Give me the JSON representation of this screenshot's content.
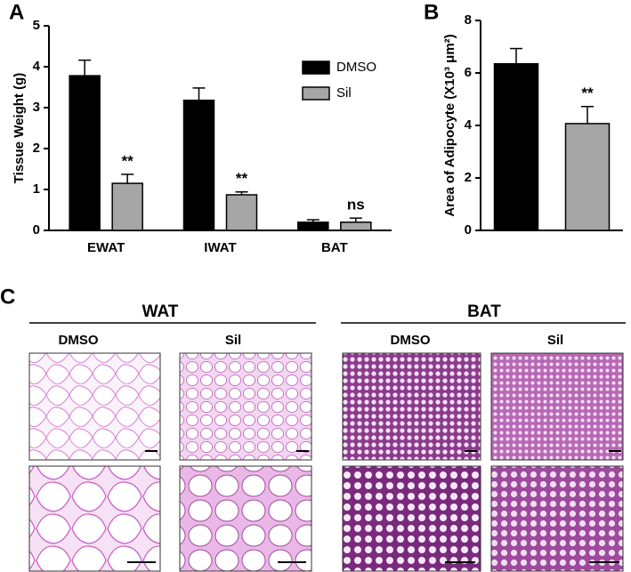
{
  "chart_data": [
    {
      "type": "bar",
      "panel_label": "A",
      "ylabel": "Tissue Weight (g)",
      "categories": [
        "EWAT",
        "IWAT",
        "BAT"
      ],
      "series": [
        {
          "name": "DMSO",
          "color": "#000000",
          "values": [
            3.78,
            3.18,
            0.2
          ],
          "errors": [
            0.38,
            0.3,
            0.06
          ]
        },
        {
          "name": "Sil",
          "color": "#a6a6a6",
          "values": [
            1.15,
            0.87,
            0.2
          ],
          "errors": [
            0.22,
            0.07,
            0.1
          ],
          "annotations": [
            "**",
            "**",
            "ns"
          ]
        }
      ],
      "ylim": [
        0,
        5
      ],
      "yticks": [
        0,
        1,
        2,
        3,
        4,
        5
      ],
      "legend": "top-right"
    },
    {
      "type": "bar",
      "panel_label": "B",
      "ylabel": "Area of Adipocyte (X10³ μm²)",
      "categories": [
        null,
        null
      ],
      "values": [
        6.35,
        4.07
      ],
      "errors": [
        0.58,
        0.65
      ],
      "colors": [
        "#000000",
        "#a6a6a6"
      ],
      "annotations": [
        null,
        "**"
      ],
      "ylim": [
        0,
        8
      ],
      "yticks": [
        0,
        2,
        4,
        6,
        8
      ]
    }
  ],
  "histology": {
    "panel_label": "C",
    "groups": [
      {
        "title": "WAT",
        "columns": [
          "DMSO",
          "Sil"
        ]
      },
      {
        "title": "BAT",
        "columns": [
          "DMSO",
          "Sil"
        ]
      }
    ]
  }
}
